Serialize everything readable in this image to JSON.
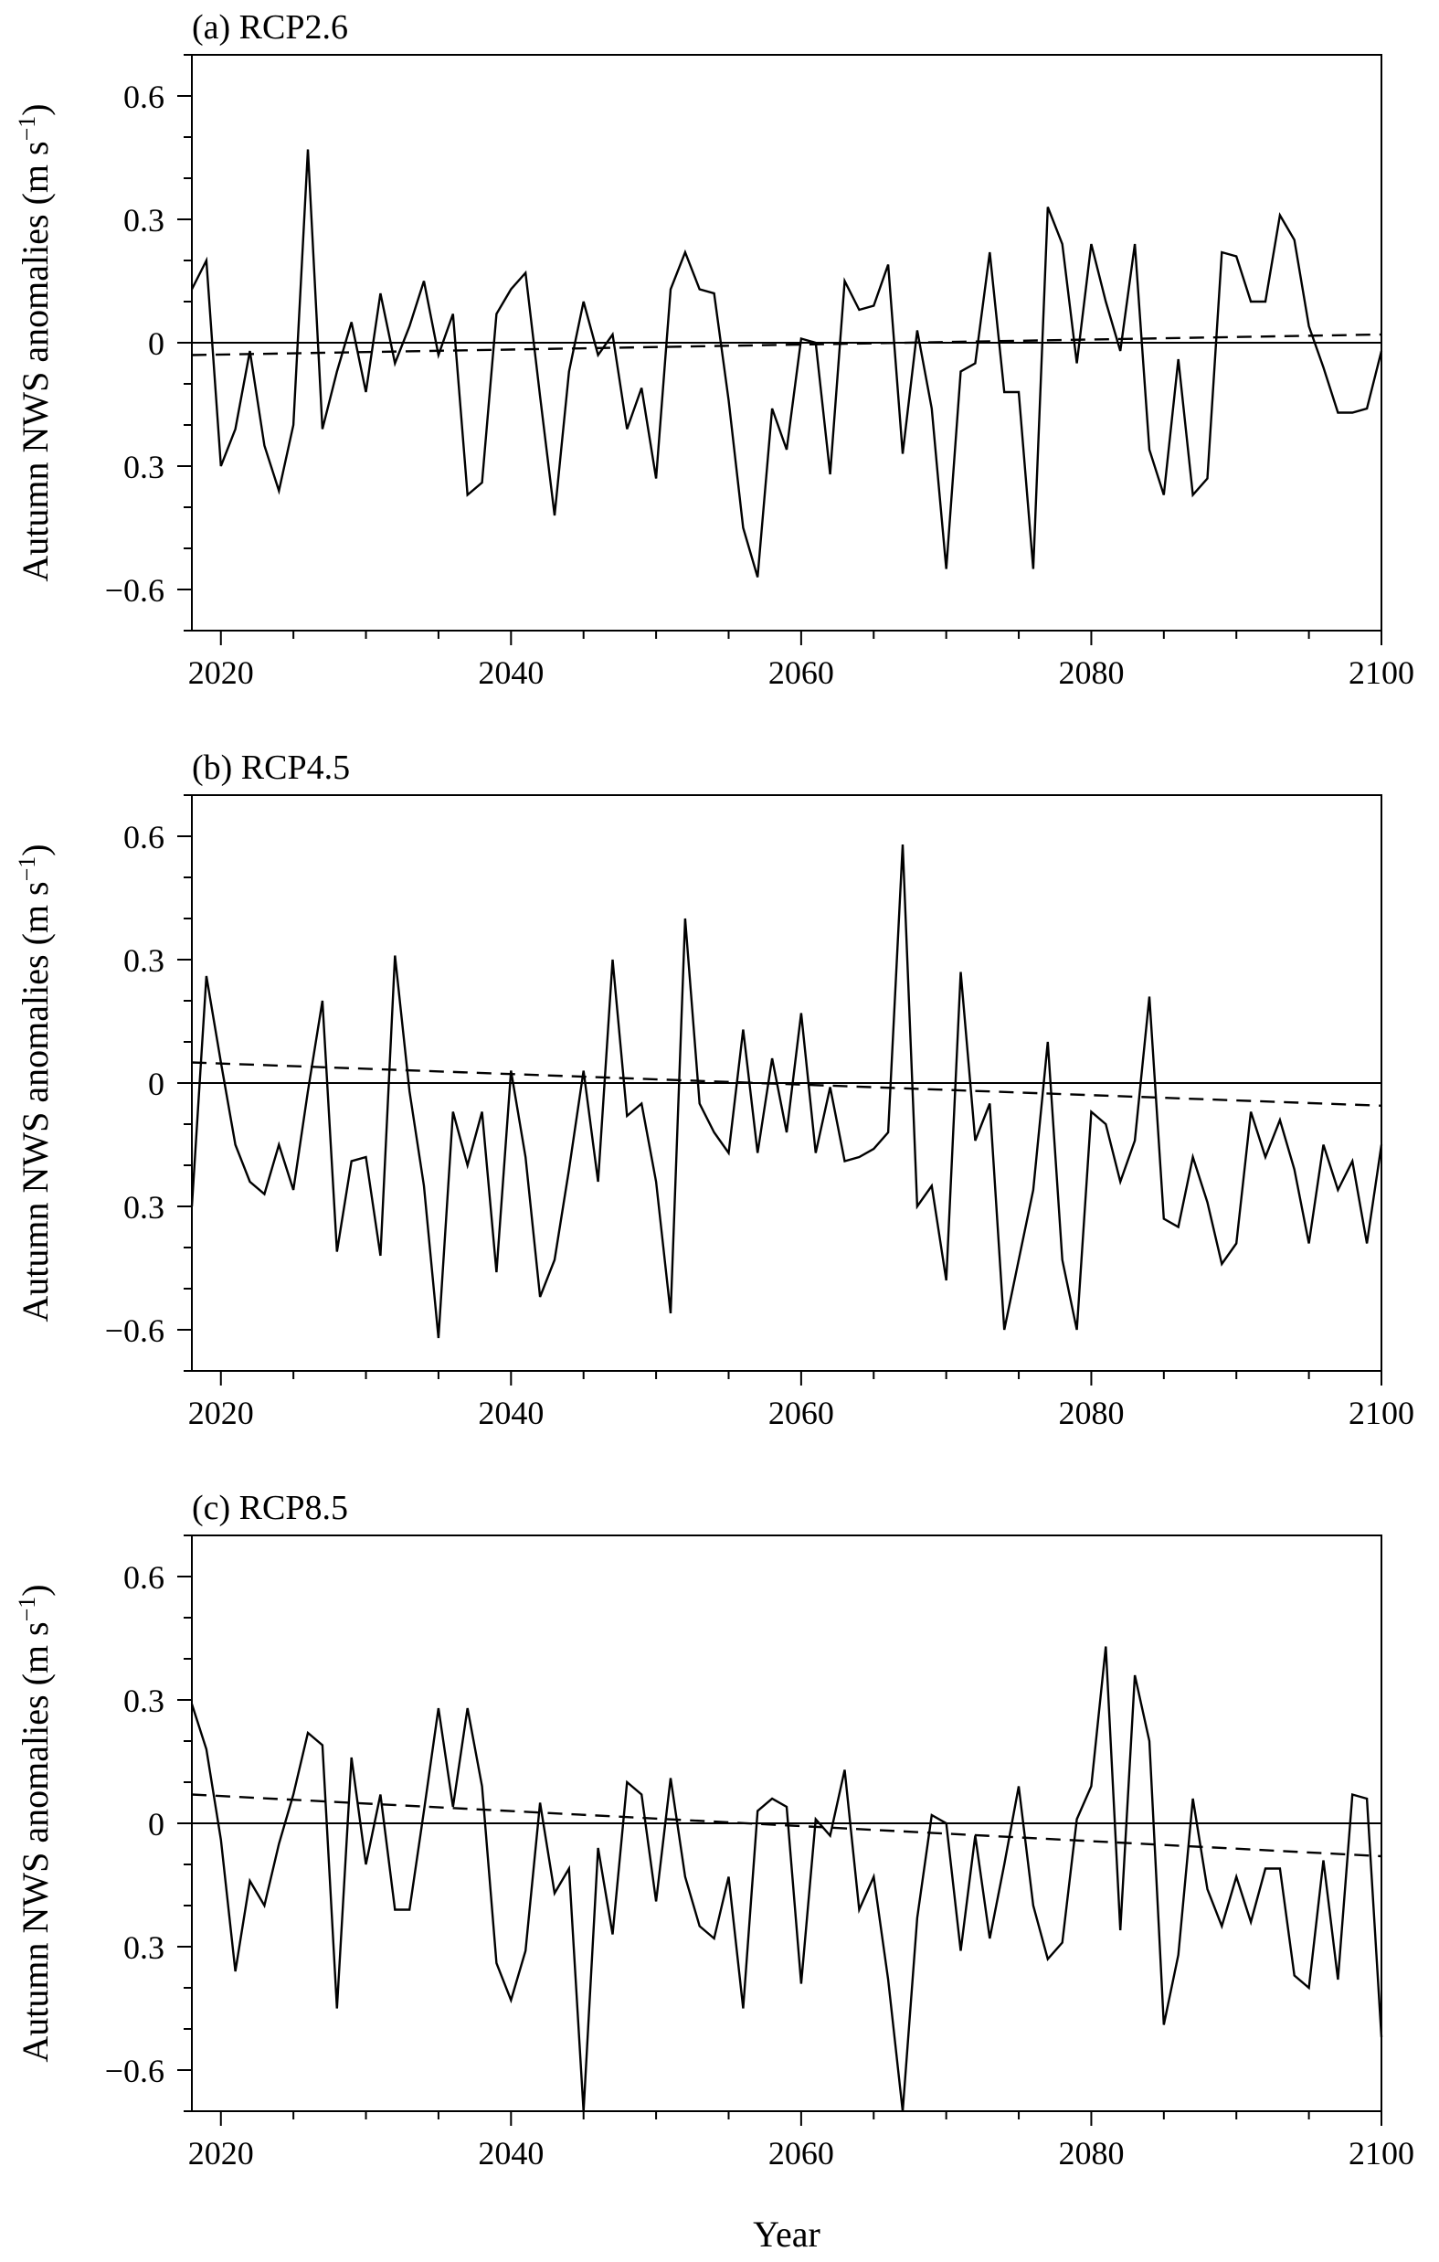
{
  "figure": {
    "xlabel": "Year",
    "ylabel": "Autumn NWS anomalies (m s",
    "ylabel_unit_exp": "−1",
    "ylabel_close": ")"
  },
  "chart_data": [
    {
      "type": "line",
      "title": "(a) RCP2.6",
      "xlim": [
        2018,
        2100
      ],
      "ylim": [
        -0.7,
        0.7
      ],
      "x_ticks": [
        2020,
        2040,
        2060,
        2080,
        2100
      ],
      "x_tick_labels": [
        "2020",
        "2040",
        "2060",
        "2080",
        "2100"
      ],
      "y_ticks": [
        0.6,
        0.3,
        0,
        -0.3,
        -0.6
      ],
      "y_tick_labels": [
        "0.6",
        "0.3",
        "0",
        "0.3",
        "−0.6"
      ],
      "x_start": 2018,
      "series": [
        {
          "name": "anomaly",
          "style": "solid",
          "values": [
            0.13,
            0.2,
            -0.3,
            -0.21,
            -0.02,
            -0.25,
            -0.36,
            -0.2,
            0.47,
            -0.21,
            -0.07,
            0.05,
            -0.12,
            0.12,
            -0.05,
            0.04,
            0.15,
            -0.03,
            0.07,
            -0.37,
            -0.34,
            0.07,
            0.13,
            0.17,
            -0.13,
            -0.42,
            -0.07,
            0.1,
            -0.03,
            0.02,
            -0.21,
            -0.11,
            -0.33,
            0.13,
            0.22,
            0.13,
            0.12,
            -0.14,
            -0.45,
            -0.57,
            -0.16,
            -0.26,
            0.01,
            0.0,
            -0.32,
            0.15,
            0.08,
            0.09,
            0.19,
            -0.27,
            0.03,
            -0.16,
            -0.55,
            -0.07,
            -0.05,
            0.22,
            -0.12,
            -0.12,
            -0.55,
            0.33,
            0.24,
            -0.05,
            0.24,
            0.1,
            -0.02,
            0.24,
            -0.26,
            -0.37,
            -0.04,
            -0.37,
            -0.33,
            0.22,
            0.21,
            0.1,
            0.1,
            0.31,
            0.25,
            0.04,
            -0.06,
            -0.17,
            -0.17,
            -0.16,
            -0.02
          ]
        },
        {
          "name": "trend",
          "style": "dashed",
          "x": [
            2018,
            2100
          ],
          "values": [
            -0.03,
            0.02
          ]
        },
        {
          "name": "zero",
          "style": "solid",
          "x": [
            2018,
            2100
          ],
          "values": [
            0,
            0
          ]
        }
      ]
    },
    {
      "type": "line",
      "title": "(b) RCP4.5",
      "xlim": [
        2018,
        2100
      ],
      "ylim": [
        -0.7,
        0.7
      ],
      "x_ticks": [
        2020,
        2040,
        2060,
        2080,
        2100
      ],
      "x_tick_labels": [
        "2020",
        "2040",
        "2060",
        "2080",
        "2100"
      ],
      "y_ticks": [
        0.6,
        0.3,
        0,
        -0.3,
        -0.6
      ],
      "y_tick_labels": [
        "0.6",
        "0.3",
        "0",
        "0.3",
        "−0.6"
      ],
      "x_start": 2018,
      "series": [
        {
          "name": "anomaly",
          "style": "solid",
          "values": [
            -0.3,
            0.26,
            0.05,
            -0.15,
            -0.24,
            -0.27,
            -0.15,
            -0.26,
            -0.02,
            0.2,
            -0.41,
            -0.19,
            -0.18,
            -0.42,
            0.31,
            -0.02,
            -0.25,
            -0.62,
            -0.07,
            -0.2,
            -0.07,
            -0.46,
            0.03,
            -0.18,
            -0.52,
            -0.43,
            -0.21,
            0.03,
            -0.24,
            0.3,
            -0.08,
            -0.05,
            -0.24,
            -0.56,
            0.4,
            -0.05,
            -0.12,
            -0.17,
            0.13,
            -0.17,
            0.06,
            -0.12,
            0.17,
            -0.17,
            -0.01,
            -0.19,
            -0.18,
            -0.16,
            -0.12,
            0.58,
            -0.3,
            -0.25,
            -0.48,
            0.27,
            -0.14,
            -0.05,
            -0.6,
            -0.43,
            -0.26,
            0.1,
            -0.43,
            -0.6,
            -0.07,
            -0.1,
            -0.24,
            -0.14,
            0.21,
            -0.33,
            -0.35,
            -0.18,
            -0.29,
            -0.44,
            -0.39,
            -0.07,
            -0.18,
            -0.09,
            -0.21,
            -0.39,
            -0.15,
            -0.26,
            -0.19,
            -0.39,
            -0.15
          ]
        },
        {
          "name": "trend",
          "style": "dashed",
          "x": [
            2018,
            2100
          ],
          "values": [
            0.05,
            -0.055
          ]
        },
        {
          "name": "zero",
          "style": "solid",
          "x": [
            2018,
            2100
          ],
          "values": [
            0,
            0
          ]
        }
      ]
    },
    {
      "type": "line",
      "title": "(c) RCP8.5",
      "xlim": [
        2018,
        2100
      ],
      "ylim": [
        -0.7,
        0.7
      ],
      "x_ticks": [
        2020,
        2040,
        2060,
        2080,
        2100
      ],
      "x_tick_labels": [
        "2020",
        "2040",
        "2060",
        "2080",
        "2100"
      ],
      "y_ticks": [
        0.6,
        0.3,
        0,
        -0.3,
        -0.6
      ],
      "y_tick_labels": [
        "0.6",
        "0.3",
        "0",
        "0.3",
        "−0.6"
      ],
      "x_start": 2018,
      "series": [
        {
          "name": "anomaly",
          "style": "solid",
          "values": [
            0.29,
            0.18,
            -0.04,
            -0.36,
            -0.14,
            -0.2,
            -0.05,
            0.07,
            0.22,
            0.19,
            -0.45,
            0.16,
            -0.1,
            0.07,
            -0.21,
            -0.21,
            0.03,
            0.28,
            0.04,
            0.28,
            0.09,
            -0.34,
            -0.43,
            -0.31,
            0.05,
            -0.17,
            -0.11,
            -0.7,
            -0.06,
            -0.27,
            0.1,
            0.07,
            -0.19,
            0.11,
            -0.13,
            -0.25,
            -0.28,
            -0.13,
            -0.45,
            0.03,
            0.06,
            0.04,
            -0.39,
            0.01,
            -0.03,
            0.13,
            -0.21,
            -0.13,
            -0.38,
            -0.7,
            -0.23,
            0.02,
            0.0,
            -0.31,
            -0.03,
            -0.28,
            -0.1,
            0.09,
            -0.2,
            -0.33,
            -0.29,
            0.01,
            0.09,
            0.43,
            -0.26,
            0.36,
            0.2,
            -0.49,
            -0.32,
            0.06,
            -0.16,
            -0.25,
            -0.13,
            -0.24,
            -0.11,
            -0.11,
            -0.37,
            -0.4,
            -0.09,
            -0.38,
            0.07,
            0.06,
            -0.52
          ]
        },
        {
          "name": "trend",
          "style": "dashed",
          "x": [
            2018,
            2100
          ],
          "values": [
            0.07,
            -0.08
          ]
        },
        {
          "name": "zero",
          "style": "solid",
          "x": [
            2018,
            2100
          ],
          "values": [
            0,
            0
          ]
        }
      ]
    }
  ]
}
